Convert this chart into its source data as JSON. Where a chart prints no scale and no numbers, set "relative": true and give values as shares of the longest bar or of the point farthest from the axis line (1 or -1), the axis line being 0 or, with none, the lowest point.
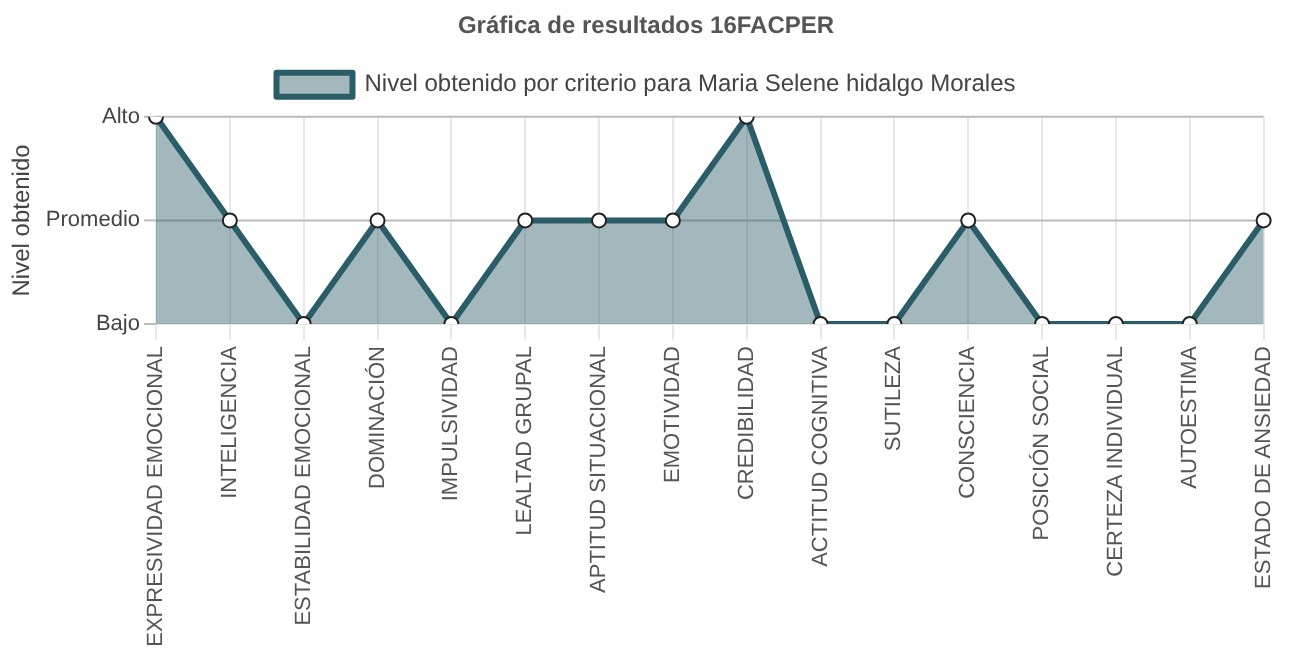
{
  "chart_data": {
    "type": "area",
    "title": "Gráfica de resultados 16FACPER",
    "ylabel": "Nivel obtenido",
    "categories": [
      "EXPRESIVIDAD EMOCIONAL",
      "INTELIGENCIA",
      "ESTABILIDAD EMOCIONAL",
      "DOMINACIÓN",
      "IMPULSIVIDAD",
      "LEALTAD GRUPAL",
      "APTITUD SITUACIONAL",
      "EMOTIVIDAD",
      "CREDIBILIDAD",
      "ACTITUD COGNITIVA",
      "SUTILEZA",
      "CONSCIENCIA",
      "POSICIÓN SOCIAL",
      "CERTEZA INDIVIDUAL",
      "AUTOESTIMA",
      "ESTADO DE ANSIEDAD"
    ],
    "series": [
      {
        "name": "Nivel obtenido por criterio para Maria Selene hidalgo Morales",
        "color": "#2b5d68",
        "values": [
          1,
          0.5,
          0,
          0.5,
          0,
          0.5,
          0.5,
          0.5,
          1,
          0,
          0,
          0.5,
          0,
          0,
          0,
          0.5
        ]
      }
    ],
    "relative": true,
    "annotations": [
      "Alto",
      "Promedio",
      "Bajo"
    ],
    "ref_lines": [
      {
        "axis": "y",
        "value": 1,
        "color": "#bbbbbb"
      },
      {
        "axis": "y",
        "value": 0.5,
        "color": "#bbbbbb"
      }
    ],
    "grid": "x",
    "legend": "top",
    "marker": "circle",
    "line_style": "solid"
  }
}
